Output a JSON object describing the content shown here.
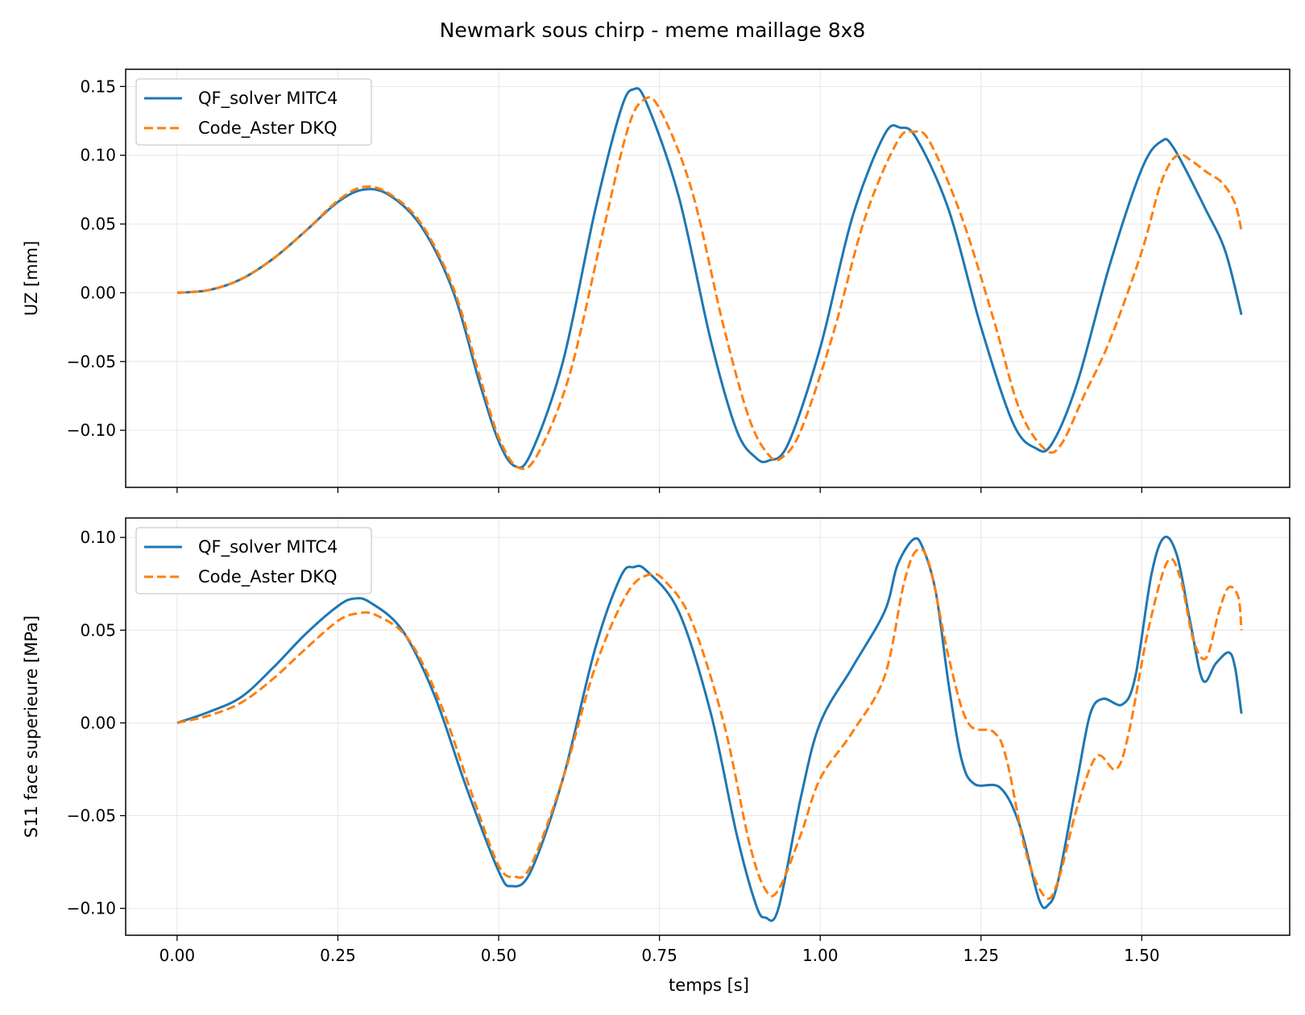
{
  "chart_data": {
    "title": "Newmark sous chirp - meme maillage 8x8",
    "type": "line",
    "xlabel": "temps [s]",
    "x_ticks": [
      "0.00",
      "0.25",
      "0.50",
      "0.75",
      "1.00",
      "1.25",
      "1.50"
    ],
    "xlim": [
      -0.08,
      1.73
    ],
    "grid": true,
    "legend_position": "top-left",
    "colors": {
      "qf": "#1f77b4",
      "aster": "#ff7f0e"
    },
    "panels": [
      {
        "ylabel": "UZ [mm]",
        "ylim": [
          -0.1415,
          0.1625
        ],
        "y_ticks": [
          "0.15",
          "0.10",
          "0.05",
          "0.00",
          "−0.05",
          "−0.10"
        ],
        "y_tick_values": [
          0.15,
          0.1,
          0.05,
          0.0,
          -0.05,
          -0.1
        ],
        "legend": [
          "QF_solver MITC4",
          "Code_Aster DKQ"
        ],
        "series": [
          {
            "name": "QF_solver MITC4",
            "style": "solid",
            "points": [
              [
                0.0,
                0.0
              ],
              [
                0.05,
                0.002
              ],
              [
                0.1,
                0.01
              ],
              [
                0.15,
                0.025
              ],
              [
                0.2,
                0.045
              ],
              [
                0.25,
                0.066
              ],
              [
                0.29,
                0.075
              ],
              [
                0.33,
                0.071
              ],
              [
                0.38,
                0.048
              ],
              [
                0.43,
                0.0
              ],
              [
                0.47,
                -0.065
              ],
              [
                0.5,
                -0.108
              ],
              [
                0.525,
                -0.126
              ],
              [
                0.55,
                -0.117
              ],
              [
                0.6,
                -0.05
              ],
              [
                0.65,
                0.06
              ],
              [
                0.69,
                0.133
              ],
              [
                0.71,
                0.148
              ],
              [
                0.73,
                0.138
              ],
              [
                0.78,
                0.07
              ],
              [
                0.83,
                -0.035
              ],
              [
                0.87,
                -0.1
              ],
              [
                0.9,
                -0.12
              ],
              [
                0.92,
                -0.122
              ],
              [
                0.95,
                -0.11
              ],
              [
                1.0,
                -0.04
              ],
              [
                1.05,
                0.055
              ],
              [
                1.1,
                0.115
              ],
              [
                1.125,
                0.12
              ],
              [
                1.15,
                0.112
              ],
              [
                1.2,
                0.06
              ],
              [
                1.25,
                -0.025
              ],
              [
                1.3,
                -0.095
              ],
              [
                1.335,
                -0.113
              ],
              [
                1.36,
                -0.11
              ],
              [
                1.4,
                -0.065
              ],
              [
                1.45,
                0.02
              ],
              [
                1.5,
                0.09
              ],
              [
                1.53,
                0.11
              ],
              [
                1.55,
                0.105
              ],
              [
                1.6,
                0.06
              ],
              [
                1.63,
                0.03
              ],
              [
                1.655,
                -0.016
              ]
            ]
          },
          {
            "name": "Code_Aster DKQ",
            "style": "dashed",
            "points": [
              [
                0.0,
                0.0
              ],
              [
                0.05,
                0.002
              ],
              [
                0.1,
                0.01
              ],
              [
                0.15,
                0.025
              ],
              [
                0.2,
                0.045
              ],
              [
                0.25,
                0.067
              ],
              [
                0.29,
                0.077
              ],
              [
                0.33,
                0.072
              ],
              [
                0.38,
                0.05
              ],
              [
                0.43,
                0.003
              ],
              [
                0.47,
                -0.06
              ],
              [
                0.5,
                -0.105
              ],
              [
                0.53,
                -0.127
              ],
              [
                0.56,
                -0.118
              ],
              [
                0.61,
                -0.06
              ],
              [
                0.66,
                0.04
              ],
              [
                0.7,
                0.118
              ],
              [
                0.725,
                0.14
              ],
              [
                0.75,
                0.134
              ],
              [
                0.8,
                0.075
              ],
              [
                0.85,
                -0.025
              ],
              [
                0.89,
                -0.092
              ],
              [
                0.92,
                -0.118
              ],
              [
                0.94,
                -0.12
              ],
              [
                0.97,
                -0.1
              ],
              [
                1.02,
                -0.03
              ],
              [
                1.07,
                0.055
              ],
              [
                1.12,
                0.11
              ],
              [
                1.145,
                0.117
              ],
              [
                1.17,
                0.11
              ],
              [
                1.22,
                0.055
              ],
              [
                1.27,
                -0.02
              ],
              [
                1.31,
                -0.085
              ],
              [
                1.35,
                -0.114
              ],
              [
                1.375,
                -0.11
              ],
              [
                1.41,
                -0.075
              ],
              [
                1.45,
                -0.035
              ],
              [
                1.5,
                0.03
              ],
              [
                1.53,
                0.08
              ],
              [
                1.555,
                0.1
              ],
              [
                1.58,
                0.095
              ],
              [
                1.6,
                0.088
              ],
              [
                1.625,
                0.08
              ],
              [
                1.645,
                0.065
              ],
              [
                1.655,
                0.045
              ]
            ]
          }
        ]
      },
      {
        "ylabel": "S11 face superieure [MPa]",
        "ylim": [
          -0.1145,
          0.1105
        ],
        "y_ticks": [
          "0.10",
          "0.05",
          "0.00",
          "−0.05",
          "−0.10"
        ],
        "y_tick_values": [
          0.1,
          0.05,
          0.0,
          -0.05,
          -0.1
        ],
        "legend": [
          "QF_solver MITC4",
          "Code_Aster DKQ"
        ],
        "series": [
          {
            "name": "QF_solver MITC4",
            "style": "solid",
            "points": [
              [
                0.0,
                0.0
              ],
              [
                0.05,
                0.006
              ],
              [
                0.1,
                0.014
              ],
              [
                0.15,
                0.03
              ],
              [
                0.2,
                0.048
              ],
              [
                0.25,
                0.063
              ],
              [
                0.275,
                0.067
              ],
              [
                0.3,
                0.065
              ],
              [
                0.35,
                0.05
              ],
              [
                0.4,
                0.015
              ],
              [
                0.45,
                -0.035
              ],
              [
                0.5,
                -0.08
              ],
              [
                0.52,
                -0.088
              ],
              [
                0.55,
                -0.08
              ],
              [
                0.6,
                -0.03
              ],
              [
                0.65,
                0.04
              ],
              [
                0.69,
                0.079
              ],
              [
                0.71,
                0.084
              ],
              [
                0.73,
                0.082
              ],
              [
                0.78,
                0.06
              ],
              [
                0.83,
                0.005
              ],
              [
                0.87,
                -0.06
              ],
              [
                0.9,
                -0.098
              ],
              [
                0.915,
                -0.105
              ],
              [
                0.935,
                -0.1
              ],
              [
                0.97,
                -0.04
              ],
              [
                1.0,
                0.0
              ],
              [
                1.05,
                0.03
              ],
              [
                1.1,
                0.06
              ],
              [
                1.12,
                0.085
              ],
              [
                1.145,
                0.099
              ],
              [
                1.16,
                0.094
              ],
              [
                1.18,
                0.07
              ],
              [
                1.2,
                0.02
              ],
              [
                1.22,
                -0.02
              ],
              [
                1.24,
                -0.033
              ],
              [
                1.28,
                -0.035
              ],
              [
                1.31,
                -0.055
              ],
              [
                1.34,
                -0.095
              ],
              [
                1.355,
                -0.098
              ],
              [
                1.37,
                -0.085
              ],
              [
                1.4,
                -0.03
              ],
              [
                1.42,
                0.005
              ],
              [
                1.44,
                0.013
              ],
              [
                1.47,
                0.01
              ],
              [
                1.49,
                0.025
              ],
              [
                1.515,
                0.08
              ],
              [
                1.535,
                0.1
              ],
              [
                1.555,
                0.09
              ],
              [
                1.575,
                0.055
              ],
              [
                1.595,
                0.023
              ],
              [
                1.615,
                0.032
              ],
              [
                1.635,
                0.038
              ],
              [
                1.645,
                0.03
              ],
              [
                1.655,
                0.005
              ]
            ]
          },
          {
            "name": "Code_Aster DKQ",
            "style": "dashed",
            "points": [
              [
                0.0,
                0.0
              ],
              [
                0.05,
                0.004
              ],
              [
                0.1,
                0.011
              ],
              [
                0.15,
                0.024
              ],
              [
                0.2,
                0.04
              ],
              [
                0.25,
                0.055
              ],
              [
                0.28,
                0.059
              ],
              [
                0.31,
                0.058
              ],
              [
                0.36,
                0.045
              ],
              [
                0.41,
                0.01
              ],
              [
                0.46,
                -0.04
              ],
              [
                0.5,
                -0.077
              ],
              [
                0.525,
                -0.083
              ],
              [
                0.55,
                -0.077
              ],
              [
                0.6,
                -0.03
              ],
              [
                0.65,
                0.03
              ],
              [
                0.7,
                0.07
              ],
              [
                0.735,
                0.08
              ],
              [
                0.76,
                0.076
              ],
              [
                0.8,
                0.055
              ],
              [
                0.85,
                0.0
              ],
              [
                0.89,
                -0.065
              ],
              [
                0.915,
                -0.09
              ],
              [
                0.935,
                -0.09
              ],
              [
                0.97,
                -0.06
              ],
              [
                1.0,
                -0.03
              ],
              [
                1.05,
                -0.005
              ],
              [
                1.1,
                0.025
              ],
              [
                1.13,
                0.075
              ],
              [
                1.15,
                0.093
              ],
              [
                1.17,
                0.085
              ],
              [
                1.2,
                0.035
              ],
              [
                1.23,
                0.0
              ],
              [
                1.27,
                -0.005
              ],
              [
                1.29,
                -0.02
              ],
              [
                1.32,
                -0.07
              ],
              [
                1.35,
                -0.094
              ],
              [
                1.37,
                -0.085
              ],
              [
                1.4,
                -0.045
              ],
              [
                1.43,
                -0.018
              ],
              [
                1.46,
                -0.025
              ],
              [
                1.48,
                -0.005
              ],
              [
                1.51,
                0.05
              ],
              [
                1.54,
                0.087
              ],
              [
                1.56,
                0.078
              ],
              [
                1.58,
                0.045
              ],
              [
                1.6,
                0.035
              ],
              [
                1.62,
                0.06
              ],
              [
                1.635,
                0.073
              ],
              [
                1.65,
                0.068
              ],
              [
                1.655,
                0.05
              ]
            ]
          }
        ]
      }
    ]
  }
}
